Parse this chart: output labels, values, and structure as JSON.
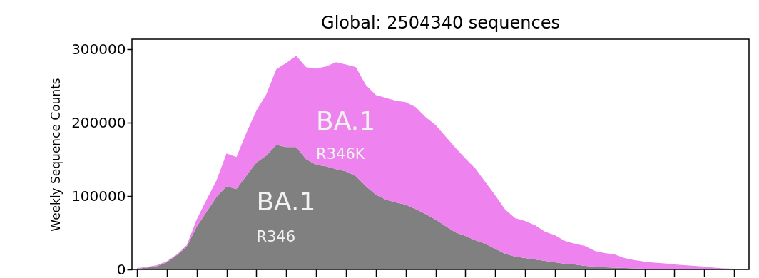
{
  "chart_data": {
    "type": "area",
    "title": "Global: 2504340 sequences",
    "ylabel": "Weekly Sequence Counts",
    "categories": [
      null,
      null,
      null,
      null,
      null,
      null,
      null,
      null,
      null,
      null,
      null,
      null,
      null,
      null,
      null,
      null,
      null,
      null,
      null,
      null,
      null,
      null,
      null,
      null,
      null,
      null,
      null,
      null,
      null,
      null,
      null,
      null,
      null,
      null,
      null,
      null,
      null,
      null,
      null,
      null,
      null,
      null,
      null,
      null,
      null,
      null,
      null,
      null,
      null,
      null,
      null,
      null,
      null,
      null,
      null,
      null,
      null,
      null,
      null,
      null,
      null,
      null
    ],
    "series": [
      {
        "name": "BA.1 R346",
        "color": "#808080",
        "values": [
          1000,
          2400,
          4400,
          9700,
          19400,
          31100,
          58300,
          78700,
          99000,
          113600,
          109700,
          128200,
          145700,
          155400,
          169900,
          167000,
          167000,
          150500,
          142700,
          140800,
          136900,
          134000,
          127200,
          113600,
          102000,
          95200,
          91300,
          88400,
          82500,
          75700,
          68000,
          59200,
          50500,
          45600,
          39800,
          35000,
          28200,
          21400,
          17500,
          15500,
          13600,
          11700,
          9700,
          7800,
          6800,
          4900,
          3900,
          2900,
          2400,
          1900,
          1500,
          1000,
          1000,
          500,
          500,
          400,
          300,
          300,
          200,
          200,
          100,
          100
        ]
      },
      {
        "name": "BA.1 R346K",
        "color": "#ee82ee",
        "values": [
          900,
          1000,
          1400,
          1500,
          1000,
          1900,
          9700,
          16500,
          22400,
          44700,
          43700,
          58200,
          70800,
          83500,
          103000,
          114600,
          124300,
          125300,
          131100,
          135900,
          145700,
          145600,
          148600,
          137900,
          135900,
          138800,
          138800,
          139800,
          138900,
          132100,
          129100,
          122400,
          115500,
          105900,
          98100,
          84400,
          72800,
          60200,
          52400,
          50500,
          46600,
          39800,
          36900,
          31000,
          28200,
          27100,
          21300,
          19400,
          18000,
          13600,
          11100,
          9700,
          8200,
          7800,
          6300,
          5400,
          4600,
          3600,
          2200,
          1300,
          900,
          400
        ]
      }
    ],
    "stacked": true,
    "ylim": [
      0,
      314000
    ],
    "yticks": [
      0,
      100000,
      200000,
      300000
    ],
    "tick_labels": "y"
  }
}
